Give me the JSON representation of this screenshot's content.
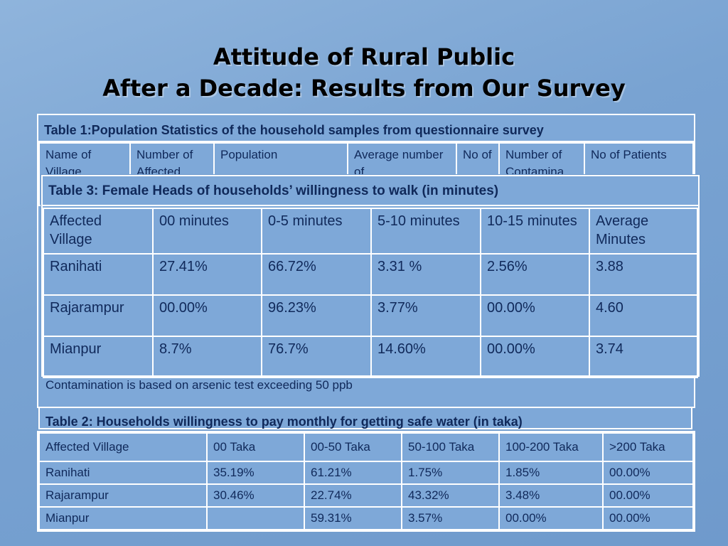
{
  "title": {
    "line1": "Attitude of Rural Public",
    "line2": "After a Decade: Results from Our Survey"
  },
  "table1": {
    "caption": "Table 1:Population Statistics of the household samples from questionnaire survey",
    "headers": [
      "Name of Village",
      "Number of Affected",
      "Population",
      "Average number of",
      "No of",
      "Number of Contamina",
      "No of Patients"
    ],
    "note": "Contamination is based on arsenic test exceeding 50 ppb"
  },
  "table3": {
    "caption": "Table 3: Female Heads of households’ willingness to walk (in minutes)",
    "headers": [
      "Affected Village",
      "00 minutes",
      "0-5 minutes",
      "5-10 minutes",
      "10-15 minutes",
      "Average Minutes"
    ],
    "rows": [
      [
        "Ranihati",
        "27.41%",
        "66.72%",
        "3.31 %",
        "2.56%",
        "3.88"
      ],
      [
        "Rajarampur",
        "00.00%",
        "96.23%",
        "3.77%",
        "00.00%",
        "4.60"
      ],
      [
        "Mianpur",
        "8.7%",
        "76.7%",
        "14.60%",
        "00.00%",
        "3.74"
      ]
    ]
  },
  "table2": {
    "caption": "Table 2: Households willingness to pay monthly for getting safe water (in taka)",
    "headers": [
      "Affected Village",
      "00 Taka",
      "00-50 Taka",
      "50-100 Taka",
      "100-200 Taka",
      ">200 Taka"
    ],
    "rows": [
      [
        "Ranihati",
        "35.19%",
        "61.21%",
        "1.75%",
        "1.85%",
        "00.00%"
      ],
      [
        "Rajarampur",
        "30.46%",
        "22.74%",
        "43.32%",
        "3.48%",
        "00.00%"
      ],
      [
        "Mianpur",
        "",
        "59.31%",
        "3.57%",
        "00.00%",
        "00.00%"
      ]
    ]
  }
}
